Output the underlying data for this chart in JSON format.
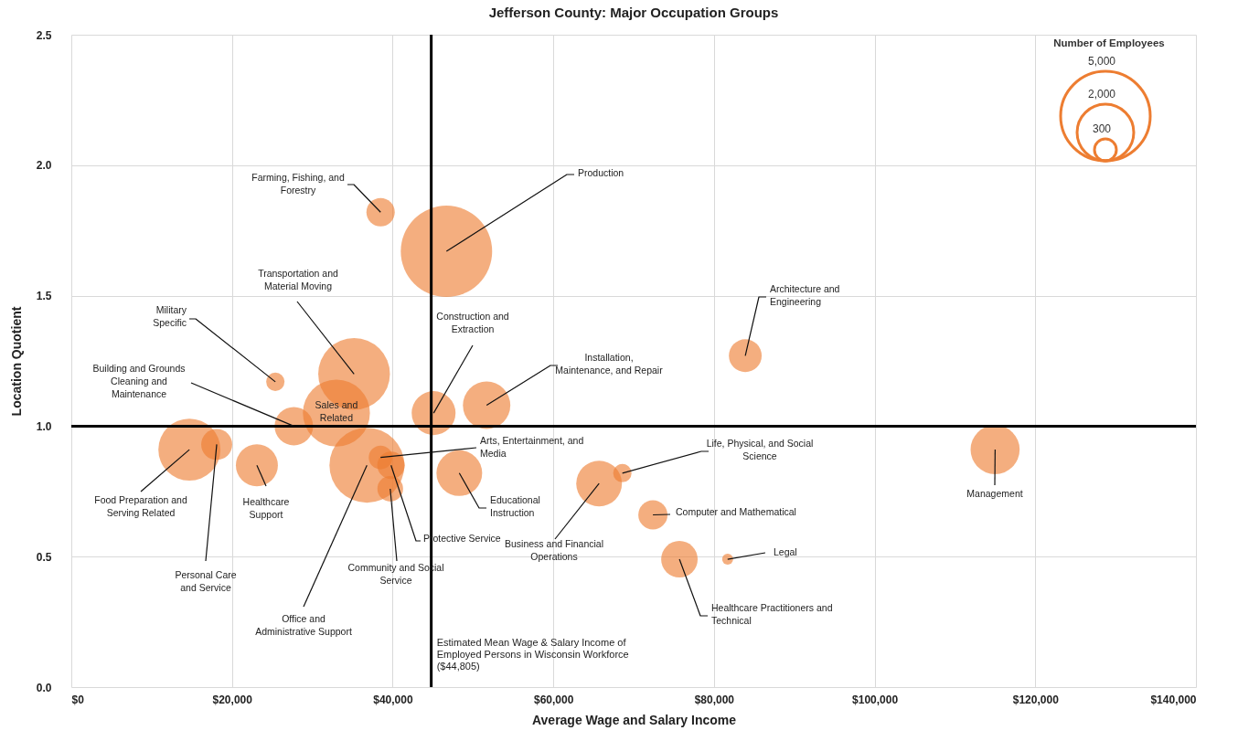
{
  "chart_data": {
    "type": "bubble",
    "title": "Jefferson County: Major Occupation Groups",
    "xlabel": "Average Wage and Salary Income",
    "ylabel": "Location Quotient",
    "legend_title": "Number of Employees",
    "grid": true,
    "color": "#ed7d31",
    "x": [
      38500,
      46700,
      35200,
      25400,
      33000,
      27700,
      14700,
      18100,
      23100,
      36800,
      38500,
      39800,
      39700,
      45100,
      51700,
      48300,
      65700,
      68600,
      72400,
      75700,
      81700,
      83900,
      115000
    ],
    "values": [
      1.82,
      1.67,
      1.2,
      1.17,
      1.05,
      1.0,
      0.91,
      0.93,
      0.85,
      0.85,
      0.88,
      0.85,
      0.76,
      1.05,
      1.08,
      0.82,
      0.78,
      0.82,
      0.66,
      0.49,
      0.49,
      1.27,
      0.91
    ],
    "sizes": [
      500,
      5200,
      3200,
      210,
      2800,
      920,
      2400,
      600,
      1100,
      3500,
      350,
      470,
      410,
      1200,
      1400,
      1300,
      1300,
      210,
      530,
      830,
      75,
      670,
      1500
    ],
    "size_legend": [
      {
        "value": 5000,
        "label": "5,000"
      },
      {
        "value": 2000,
        "label": "2,000"
      },
      300
    ],
    "xlim": [
      0,
      140000
    ],
    "xticks": [
      {
        "value": 0,
        "label": "$0"
      },
      {
        "value": 20000,
        "label": "$20,000"
      },
      {
        "value": 40000,
        "label": "$40,000"
      },
      {
        "value": 60000,
        "label": "$60,000"
      },
      {
        "value": 80000,
        "label": "$80,000"
      },
      {
        "value": 100000,
        "label": "$100,000"
      },
      {
        "value": 120000,
        "label": "$120,000"
      },
      {
        "value": 140000,
        "label": "$140,000"
      }
    ],
    "ylim": [
      0,
      2.5
    ],
    "yticks": [
      {
        "value": 0,
        "label": "0.0"
      },
      {
        "value": 0.5,
        "label": "0.5"
      },
      {
        "value": 1,
        "label": "1.0"
      },
      {
        "value": 1.5,
        "label": "1.5"
      },
      {
        "value": 2,
        "label": "2.0"
      },
      {
        "value": 2.5,
        "label": "2.5"
      }
    ],
    "ref_lines": [
      {
        "axis": "x",
        "value": 44805,
        "label": "Estimated Mean Wage & Salary Income of Employed Persons in Wisconsin Workforce ($44,805)",
        "color": "#000000"
      },
      {
        "axis": "y",
        "value": 1,
        "color": "#000000"
      }
    ],
    "annotations": [
      {
        "text": "Farming, Fishing, and Forestry",
        "x": 38500,
        "y": 1.82
      },
      {
        "text": "Production",
        "x": 46700,
        "y": 1.67
      },
      {
        "text": "Transportation and Material Moving",
        "x": 35200,
        "y": 1.2
      },
      {
        "text": "Military Specific",
        "x": 25400,
        "y": 1.17
      },
      {
        "text": "Sales and Related",
        "x": 33000,
        "y": 1.05
      },
      {
        "text": "Building and Grounds Cleaning and Maintenance",
        "x": 27700,
        "y": 1.0
      },
      {
        "text": "Food Preparation and Serving Related",
        "x": 14700,
        "y": 0.91
      },
      {
        "text": "Personal Care and Service",
        "x": 18100,
        "y": 0.93
      },
      {
        "text": "Healthcare Support",
        "x": 23100,
        "y": 0.85
      },
      {
        "text": "Office and Administrative Support",
        "x": 36800,
        "y": 0.85
      },
      {
        "text": "Arts, Entertainment, and Media",
        "x": 38500,
        "y": 0.88
      },
      {
        "text": "Protective Service",
        "x": 39800,
        "y": 0.85
      },
      {
        "text": "Community and Social Service",
        "x": 39700,
        "y": 0.76
      },
      {
        "text": "Construction and Extraction",
        "x": 45100,
        "y": 1.05
      },
      {
        "text": "Installation, Maintenance, and Repair",
        "x": 51700,
        "y": 1.08
      },
      {
        "text": "Educational Instruction",
        "x": 48300,
        "y": 0.82
      },
      {
        "text": "Business and Financial Operations",
        "x": 65700,
        "y": 0.78
      },
      {
        "text": "Life, Physical, and Social Science",
        "x": 68600,
        "y": 0.82
      },
      {
        "text": "Computer and Mathematical",
        "x": 72400,
        "y": 0.66
      },
      {
        "text": "Healthcare Practitioners and Technical",
        "x": 75700,
        "y": 0.49
      },
      {
        "text": "Legal",
        "x": 81700,
        "y": 0.49
      },
      {
        "text": "Architecture and Engineering",
        "x": 83900,
        "y": 1.27
      },
      {
        "text": "Management",
        "x": 115000,
        "y": 0.91
      }
    ]
  }
}
